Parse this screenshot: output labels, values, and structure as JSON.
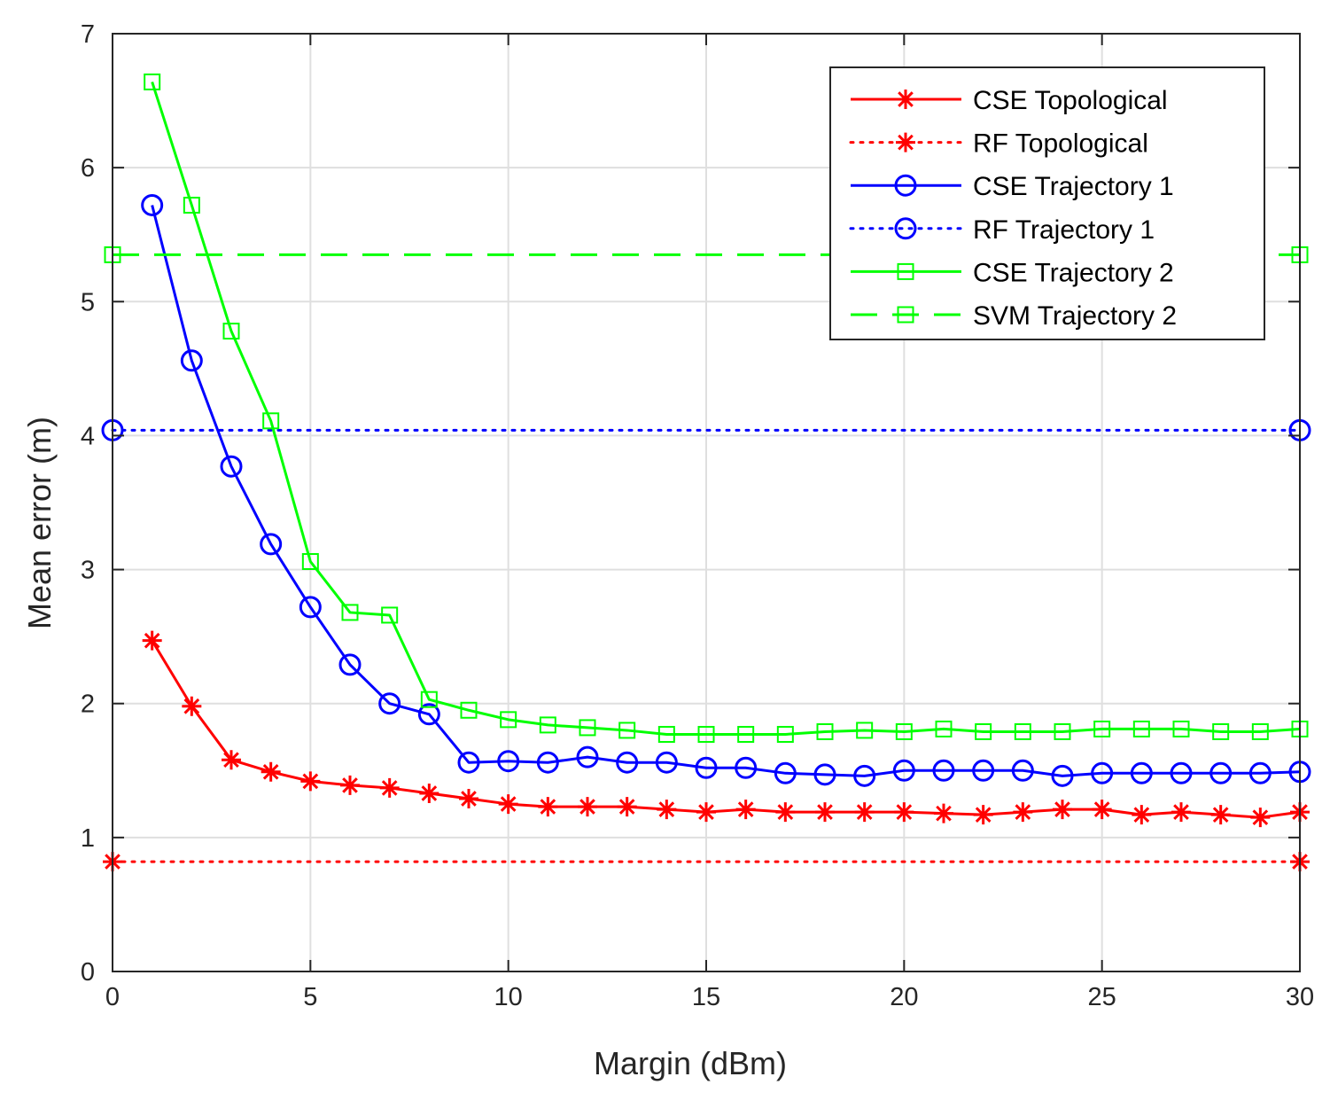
{
  "chart_data": {
    "type": "line",
    "title": "",
    "xlabel": "Margin (dBm)",
    "ylabel": "Mean error (m)",
    "xlim": [
      0,
      30
    ],
    "ylim": [
      0,
      7
    ],
    "grid": true,
    "legend_position": "top-right",
    "xticks": [
      0,
      5,
      10,
      15,
      20,
      25,
      30
    ],
    "yticks": [
      0,
      1,
      2,
      3,
      4,
      5,
      6,
      7
    ],
    "xtick_labels": [
      "0",
      "5",
      "10",
      "15",
      "20",
      "25",
      "30"
    ],
    "ytick_labels": [
      "0",
      "1",
      "2",
      "3",
      "4",
      "5",
      "6",
      "7"
    ],
    "series": [
      {
        "name": "CSE Topological",
        "color": "#ff0000",
        "line_style": "solid",
        "marker": "asterisk",
        "x": [
          1,
          2,
          3,
          4,
          5,
          6,
          7,
          8,
          9,
          10,
          11,
          12,
          13,
          14,
          15,
          16,
          17,
          18,
          19,
          20,
          21,
          22,
          23,
          24,
          25,
          26,
          27,
          28,
          29,
          30
        ],
        "y": [
          2.47,
          1.98,
          1.58,
          1.49,
          1.42,
          1.39,
          1.37,
          1.33,
          1.29,
          1.25,
          1.23,
          1.23,
          1.23,
          1.21,
          1.19,
          1.21,
          1.19,
          1.19,
          1.19,
          1.19,
          1.18,
          1.17,
          1.19,
          1.21,
          1.21,
          1.17,
          1.19,
          1.17,
          1.15,
          1.19
        ]
      },
      {
        "name": "RF Topological",
        "color": "#ff0000",
        "line_style": "dotted",
        "marker": "asterisk",
        "x": [
          0,
          30
        ],
        "y": [
          0.82,
          0.82
        ]
      },
      {
        "name": "CSE Trajectory 1",
        "color": "#0000ff",
        "line_style": "solid",
        "marker": "circle",
        "x": [
          1,
          2,
          3,
          4,
          5,
          6,
          7,
          8,
          9,
          10,
          11,
          12,
          13,
          14,
          15,
          16,
          17,
          18,
          19,
          20,
          21,
          22,
          23,
          24,
          25,
          26,
          27,
          28,
          29,
          30
        ],
        "y": [
          5.72,
          4.56,
          3.77,
          3.19,
          2.72,
          2.29,
          2.0,
          1.92,
          1.56,
          1.57,
          1.56,
          1.6,
          1.56,
          1.56,
          1.52,
          1.52,
          1.48,
          1.47,
          1.46,
          1.5,
          1.5,
          1.5,
          1.5,
          1.46,
          1.48,
          1.48,
          1.48,
          1.48,
          1.48,
          1.49
        ]
      },
      {
        "name": "RF Trajectory 1",
        "color": "#0000ff",
        "line_style": "dotted",
        "marker": "circle",
        "x": [
          0,
          30
        ],
        "y": [
          4.04,
          4.04
        ]
      },
      {
        "name": "CSE Trajectory 2",
        "color": "#00ff00",
        "line_style": "solid",
        "marker": "square",
        "x": [
          1,
          2,
          3,
          4,
          5,
          6,
          7,
          8,
          9,
          10,
          11,
          12,
          13,
          14,
          15,
          16,
          17,
          18,
          19,
          20,
          21,
          22,
          23,
          24,
          25,
          26,
          27,
          28,
          29,
          30
        ],
        "y": [
          6.64,
          5.72,
          4.78,
          4.11,
          3.06,
          2.68,
          2.66,
          2.03,
          1.95,
          1.88,
          1.84,
          1.82,
          1.8,
          1.77,
          1.77,
          1.77,
          1.77,
          1.79,
          1.8,
          1.79,
          1.81,
          1.79,
          1.79,
          1.79,
          1.81,
          1.81,
          1.81,
          1.79,
          1.79,
          1.81
        ]
      },
      {
        "name": "SVM Trajectory 2",
        "color": "#00ff00",
        "line_style": "dashed",
        "marker": "square",
        "x": [
          0,
          30
        ],
        "y": [
          5.35,
          5.35
        ]
      }
    ]
  }
}
